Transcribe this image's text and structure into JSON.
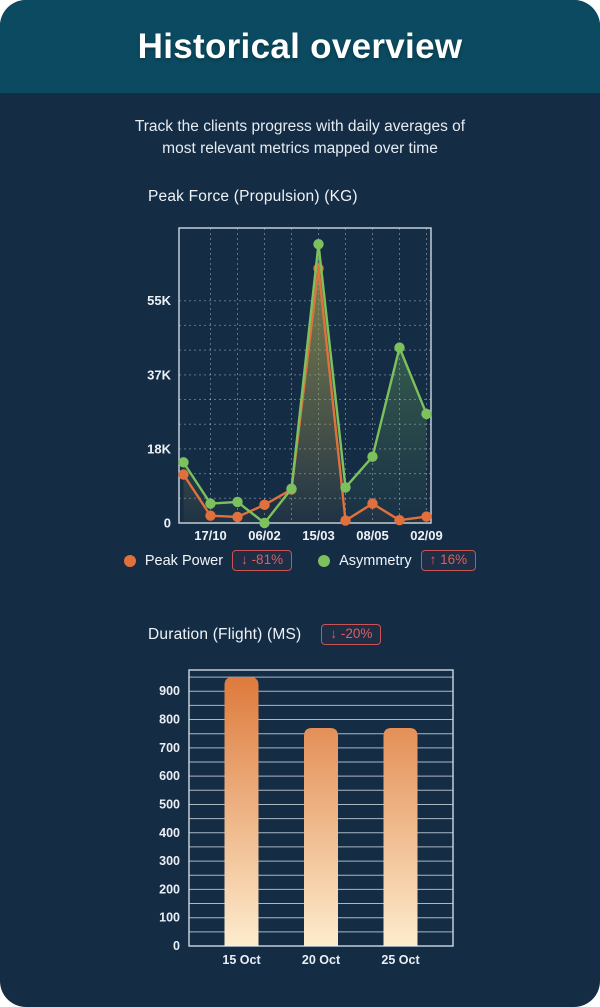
{
  "header": {
    "title": "Historical overview"
  },
  "subtitle": {
    "line1": "Track the clients progress with daily averages of",
    "line2": "most relevant metrics mapped over time"
  },
  "theme": {
    "header_bg": "#0b4a60",
    "body_bg": "#152c45",
    "badge_red": "#dd5f5f",
    "plot_border": "#cfd9e0",
    "grid_dashed": "rgba(255,255,255,0.35)",
    "grid_solid": "rgba(197,208,217,0.85)"
  },
  "chart_data": [
    {
      "type": "line",
      "title": "Peak Force (Propulsion) (KG)",
      "categories": [
        "",
        "17/10",
        "",
        "06/02",
        "",
        "15/03",
        "",
        "08/05",
        "",
        "02/09"
      ],
      "series": [
        {
          "name": "Peak Power",
          "color": "#e0713c",
          "change_badge": "↓ -81%",
          "values": [
            12000,
            1800,
            1500,
            4500,
            8300,
            63000,
            600,
            4800,
            700,
            1600
          ]
        },
        {
          "name": "Asymmetry",
          "color": "#7cc15e",
          "change_badge": "↑ 16%",
          "values": [
            15000,
            4800,
            5200,
            0,
            8500,
            69000,
            8800,
            16400,
            43400,
            27000
          ]
        }
      ],
      "ylim": [
        0,
        73000
      ],
      "y_ticks": [
        {
          "value": 0,
          "label": "0"
        },
        {
          "value": 18333,
          "label": "18K"
        },
        {
          "value": 36667,
          "label": "37K"
        },
        {
          "value": 55000,
          "label": "55K"
        }
      ],
      "y_grid_divisions": 9,
      "grid": "dashed",
      "legend_position": "bottom"
    },
    {
      "type": "bar",
      "title": "Duration (Flight) (MS)",
      "change_badge": "↓ -20%",
      "categories": [
        "15 Oct",
        "20 Oct",
        "25 Oct"
      ],
      "values": [
        950,
        770,
        770
      ],
      "ylim": [
        0,
        975
      ],
      "y_tick_labels": [
        "0",
        "100",
        "200",
        "300",
        "400",
        "500",
        "600",
        "700",
        "800",
        "900"
      ],
      "y_label_step": 100,
      "y_grid_step": 50,
      "grid": "solid",
      "bar_gradient": [
        "#de7a3c",
        "#fdeccd"
      ],
      "legend_position": "none"
    }
  ]
}
